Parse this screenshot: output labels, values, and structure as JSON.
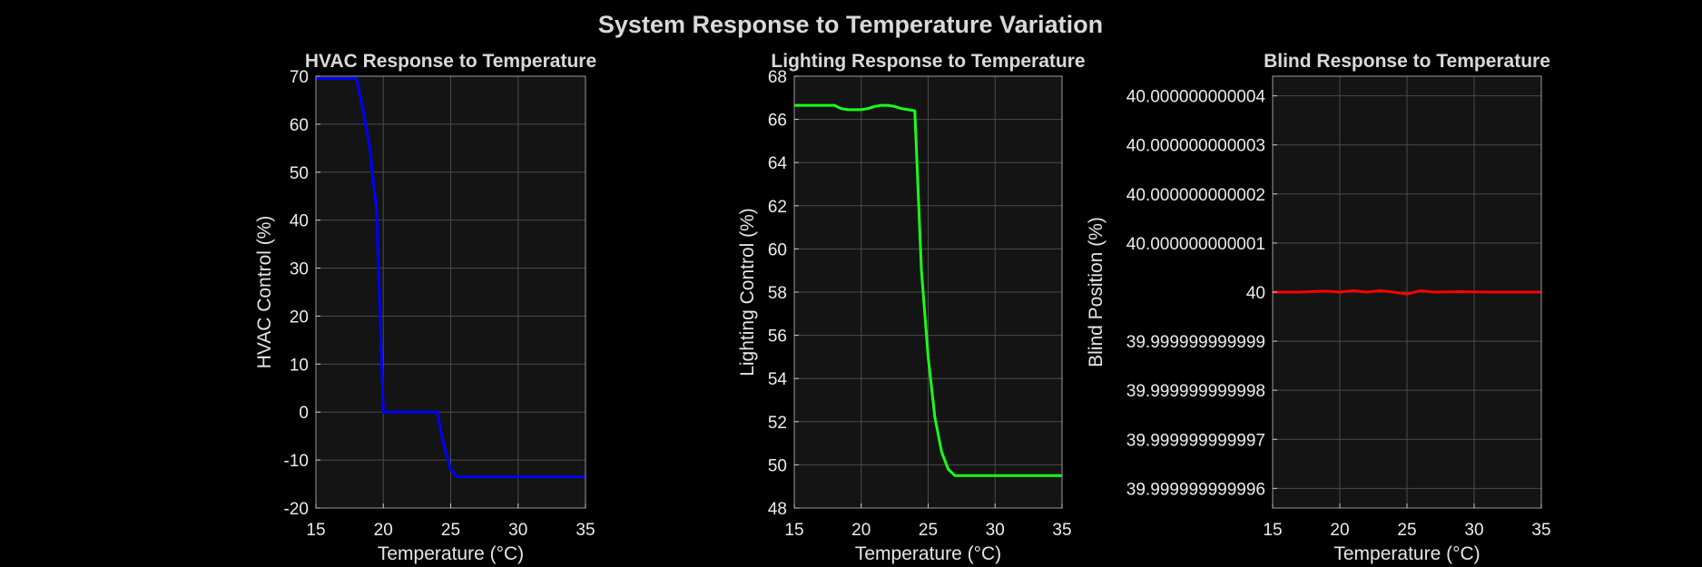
{
  "figure": {
    "title": "System Response to Temperature Variation"
  },
  "chart_data": [
    {
      "type": "line",
      "title": "HVAC Response to Temperature",
      "xlabel": "Temperature (°C)",
      "ylabel": "HVAC Control (%)",
      "xlim": [
        15,
        35
      ],
      "ylim": [
        -20,
        70
      ],
      "xticks": [
        "15",
        "20",
        "25",
        "30",
        "35"
      ],
      "yticks": [
        "-20",
        "-10",
        "0",
        "10",
        "20",
        "30",
        "40",
        "50",
        "60",
        "70"
      ],
      "grid": true,
      "color": "#0000ff",
      "x": [
        15,
        18,
        18.5,
        19,
        19.5,
        20,
        20.5,
        21,
        22,
        23,
        24,
        24.5,
        25,
        25.5,
        26,
        27,
        28,
        30,
        32,
        35
      ],
      "y": [
        69.5,
        69.5,
        63,
        55,
        42,
        0,
        0,
        0,
        0,
        0,
        0,
        -7,
        -12,
        -13.5,
        -13.5,
        -13.5,
        -13.5,
        -13.5,
        -13.5,
        -13.5
      ]
    },
    {
      "type": "line",
      "title": "Lighting Response to Temperature",
      "xlabel": "Temperature (°C)",
      "ylabel": "Lighting Control (%)",
      "xlim": [
        15,
        35
      ],
      "ylim": [
        48,
        68
      ],
      "xticks": [
        "15",
        "20",
        "25",
        "30",
        "35"
      ],
      "yticks": [
        "48",
        "50",
        "52",
        "54",
        "56",
        "58",
        "60",
        "62",
        "64",
        "66",
        "68"
      ],
      "grid": true,
      "color": "#1aff1a",
      "x": [
        15,
        18,
        18.5,
        19,
        20,
        20.5,
        21,
        21.5,
        22,
        22.5,
        23,
        23.5,
        24,
        24.5,
        25,
        25.5,
        26,
        26.5,
        27,
        28,
        30,
        35
      ],
      "y": [
        66.65,
        66.65,
        66.5,
        66.45,
        66.45,
        66.5,
        66.6,
        66.65,
        66.65,
        66.6,
        66.5,
        66.45,
        66.4,
        59,
        55,
        52.2,
        50.6,
        49.8,
        49.5,
        49.5,
        49.5,
        49.5
      ]
    },
    {
      "type": "line",
      "title": "Blind Response to Temperature",
      "xlabel": "Temperature (°C)",
      "ylabel": "Blind Position (%)",
      "xlim": [
        15,
        35
      ],
      "ylim": [
        -4.4,
        4.4
      ],
      "y_offset": 40,
      "y_unit": "1e-12",
      "xticks": [
        "15",
        "20",
        "25",
        "30",
        "35"
      ],
      "yticks": [
        "39.999999999996",
        "39.999999999997",
        "39.999999999998",
        "39.999999999999",
        "40",
        "40.000000000001",
        "40.000000000002",
        "40.000000000003",
        "40.000000000004"
      ],
      "grid": true,
      "color": "#ff0000",
      "x": [
        15,
        17,
        19,
        20,
        21,
        22,
        23,
        24,
        25,
        26,
        27,
        29,
        31,
        33,
        35
      ],
      "y": [
        0,
        0,
        0.02,
        0,
        0.03,
        0,
        0.03,
        0,
        -0.04,
        0.03,
        0,
        0.01,
        0,
        0,
        0
      ]
    }
  ]
}
